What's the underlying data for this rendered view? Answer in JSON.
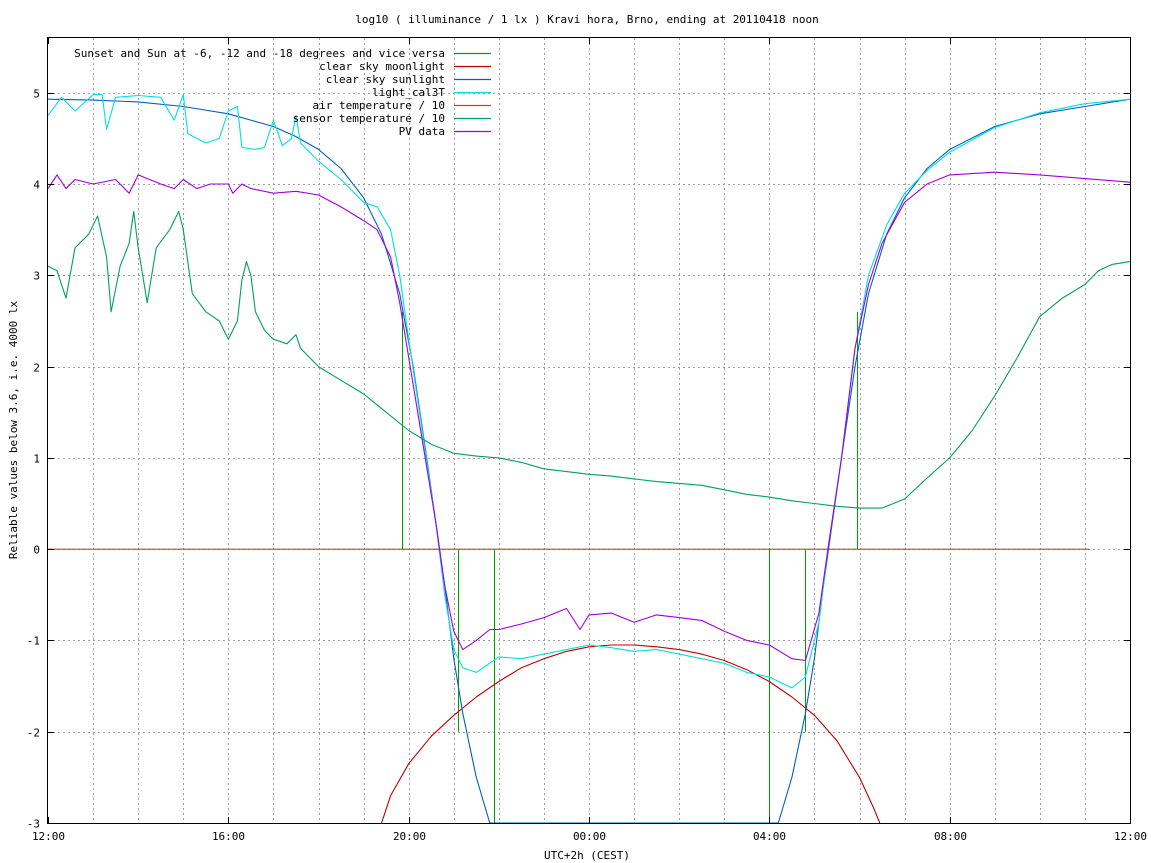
{
  "chart_data": {
    "type": "line",
    "title": "log10 ( illuminance / 1 lx ) Kravi hora, Brno, ending at 20110418 noon",
    "xlabel": "UTC+2h (CEST)",
    "ylabel": "Reliable values below 3.6, i.e. 4000 lx",
    "xlim": [
      0,
      24
    ],
    "ylim": [
      -3,
      5.6
    ],
    "grid": true,
    "legend_position": "top-left",
    "x_ticks": [
      {
        "value": 0,
        "label": "12:00"
      },
      {
        "value": 4,
        "label": "16:00"
      },
      {
        "value": 8,
        "label": "20:00"
      },
      {
        "value": 12,
        "label": "00:00"
      },
      {
        "value": 16,
        "label": "04:00"
      },
      {
        "value": 20,
        "label": "08:00"
      },
      {
        "value": 24,
        "label": "12:00"
      }
    ],
    "x_minor_grid_step": 1,
    "y_ticks": [
      {
        "value": 5,
        "label": "5"
      },
      {
        "value": 4,
        "label": "4"
      },
      {
        "value": 3,
        "label": "3"
      },
      {
        "value": 2,
        "label": "2"
      },
      {
        "value": 1,
        "label": "1"
      },
      {
        "value": 0,
        "label": "0"
      },
      {
        "value": -1,
        "label": "-1"
      },
      {
        "value": -2,
        "label": "-2"
      },
      {
        "value": -3,
        "label": "-3"
      }
    ],
    "series": [
      {
        "name": "Sunset and Sun at -6, -12 and -18 degrees and vice versa",
        "color": "#00a000",
        "style": "impulses",
        "impulses": [
          {
            "x": 7.85,
            "y": 2.6
          },
          {
            "x": 9.1,
            "y": -2.0
          },
          {
            "x": 9.9,
            "y": -3.0
          },
          {
            "x": 16.0,
            "y": -3.0
          },
          {
            "x": 16.8,
            "y": -2.0
          },
          {
            "x": 17.95,
            "y": 2.6
          }
        ]
      },
      {
        "name": "clear sky moonlight",
        "color": "#c00000",
        "points": [
          [
            7.4,
            -3.0
          ],
          [
            7.6,
            -2.7
          ],
          [
            8.0,
            -2.35
          ],
          [
            8.5,
            -2.05
          ],
          [
            9.0,
            -1.82
          ],
          [
            9.5,
            -1.62
          ],
          [
            10.0,
            -1.45
          ],
          [
            10.5,
            -1.3
          ],
          [
            11.0,
            -1.2
          ],
          [
            11.5,
            -1.12
          ],
          [
            12.0,
            -1.07
          ],
          [
            12.5,
            -1.05
          ],
          [
            13.0,
            -1.05
          ],
          [
            13.5,
            -1.07
          ],
          [
            14.0,
            -1.1
          ],
          [
            14.5,
            -1.15
          ],
          [
            15.0,
            -1.22
          ],
          [
            15.5,
            -1.32
          ],
          [
            16.0,
            -1.45
          ],
          [
            16.5,
            -1.62
          ],
          [
            17.0,
            -1.82
          ],
          [
            17.5,
            -2.1
          ],
          [
            18.0,
            -2.5
          ],
          [
            18.3,
            -2.82
          ],
          [
            18.45,
            -3.0
          ]
        ]
      },
      {
        "name": "clear sky sunlight",
        "color": "#0060c0",
        "points": [
          [
            0,
            4.93
          ],
          [
            1,
            4.92
          ],
          [
            2,
            4.9
          ],
          [
            3,
            4.85
          ],
          [
            4,
            4.77
          ],
          [
            5,
            4.63
          ],
          [
            5.5,
            4.52
          ],
          [
            6,
            4.38
          ],
          [
            6.5,
            4.17
          ],
          [
            7,
            3.85
          ],
          [
            7.4,
            3.45
          ],
          [
            7.8,
            2.8
          ],
          [
            8.1,
            2.0
          ],
          [
            8.4,
            1.0
          ],
          [
            8.6,
            0.3
          ],
          [
            8.8,
            -0.4
          ],
          [
            9.0,
            -1.2
          ],
          [
            9.2,
            -1.8
          ],
          [
            9.5,
            -2.5
          ],
          [
            9.8,
            -3.0
          ],
          [
            16.2,
            -3.0
          ],
          [
            16.5,
            -2.5
          ],
          [
            16.8,
            -1.8
          ],
          [
            17.0,
            -1.2
          ],
          [
            17.2,
            -0.4
          ],
          [
            17.4,
            0.3
          ],
          [
            17.6,
            1.0
          ],
          [
            17.9,
            2.0
          ],
          [
            18.2,
            2.8
          ],
          [
            18.6,
            3.45
          ],
          [
            19.0,
            3.85
          ],
          [
            19.5,
            4.17
          ],
          [
            20.0,
            4.38
          ],
          [
            21.0,
            4.63
          ],
          [
            22.0,
            4.77
          ],
          [
            23.0,
            4.85
          ],
          [
            24.0,
            4.93
          ]
        ]
      },
      {
        "name": "light_cal3T",
        "color": "#00e0e0",
        "points": [
          [
            0,
            4.75
          ],
          [
            0.3,
            4.95
          ],
          [
            0.6,
            4.8
          ],
          [
            1.0,
            4.98
          ],
          [
            1.2,
            4.98
          ],
          [
            1.3,
            4.6
          ],
          [
            1.5,
            4.95
          ],
          [
            2.0,
            4.97
          ],
          [
            2.5,
            4.95
          ],
          [
            2.8,
            4.7
          ],
          [
            3.0,
            4.98
          ],
          [
            3.1,
            4.55
          ],
          [
            3.5,
            4.45
          ],
          [
            3.8,
            4.5
          ],
          [
            4.0,
            4.8
          ],
          [
            4.2,
            4.85
          ],
          [
            4.3,
            4.4
          ],
          [
            4.6,
            4.38
          ],
          [
            4.8,
            4.4
          ],
          [
            5.0,
            4.7
          ],
          [
            5.2,
            4.42
          ],
          [
            5.4,
            4.5
          ],
          [
            5.5,
            4.75
          ],
          [
            5.6,
            4.45
          ],
          [
            6.0,
            4.25
          ],
          [
            6.5,
            4.05
          ],
          [
            7.0,
            3.8
          ],
          [
            7.3,
            3.75
          ],
          [
            7.6,
            3.5
          ],
          [
            7.8,
            3.0
          ],
          [
            8.0,
            2.3
          ],
          [
            8.3,
            1.3
          ],
          [
            8.6,
            0.3
          ],
          [
            8.8,
            -0.5
          ],
          [
            9.0,
            -1.1
          ],
          [
            9.2,
            -1.3
          ],
          [
            9.5,
            -1.35
          ],
          [
            10.0,
            -1.18
          ],
          [
            10.5,
            -1.2
          ],
          [
            11.0,
            -1.15
          ],
          [
            11.5,
            -1.1
          ],
          [
            12.0,
            -1.05
          ],
          [
            12.5,
            -1.08
          ],
          [
            13.0,
            -1.12
          ],
          [
            13.5,
            -1.1
          ],
          [
            14.0,
            -1.15
          ],
          [
            14.5,
            -1.2
          ],
          [
            15.0,
            -1.25
          ],
          [
            15.5,
            -1.35
          ],
          [
            16.0,
            -1.4
          ],
          [
            16.5,
            -1.52
          ],
          [
            16.8,
            -1.4
          ],
          [
            17.1,
            -0.8
          ],
          [
            17.3,
            0.0
          ],
          [
            17.6,
            1.0
          ],
          [
            17.9,
            2.2
          ],
          [
            18.2,
            3.0
          ],
          [
            18.6,
            3.55
          ],
          [
            19.0,
            3.9
          ],
          [
            19.5,
            4.15
          ],
          [
            20.0,
            4.35
          ],
          [
            21.0,
            4.62
          ],
          [
            22.0,
            4.78
          ],
          [
            23.0,
            4.88
          ],
          [
            24.0,
            4.93
          ]
        ]
      },
      {
        "name": "air temperature / 10",
        "color": "#c05000",
        "points": [
          [
            0,
            0.0
          ],
          [
            23.1,
            0.0
          ]
        ]
      },
      {
        "name": "sensor temperature / 10",
        "color": "#00a060",
        "points": [
          [
            0,
            3.1
          ],
          [
            0.2,
            3.05
          ],
          [
            0.4,
            2.75
          ],
          [
            0.6,
            3.3
          ],
          [
            0.9,
            3.45
          ],
          [
            1.1,
            3.65
          ],
          [
            1.3,
            3.2
          ],
          [
            1.4,
            2.6
          ],
          [
            1.6,
            3.1
          ],
          [
            1.8,
            3.35
          ],
          [
            1.9,
            3.7
          ],
          [
            2.0,
            3.3
          ],
          [
            2.2,
            2.7
          ],
          [
            2.4,
            3.3
          ],
          [
            2.7,
            3.5
          ],
          [
            2.9,
            3.7
          ],
          [
            3.0,
            3.5
          ],
          [
            3.2,
            2.8
          ],
          [
            3.5,
            2.6
          ],
          [
            3.8,
            2.5
          ],
          [
            4.0,
            2.3
          ],
          [
            4.2,
            2.5
          ],
          [
            4.3,
            2.95
          ],
          [
            4.4,
            3.15
          ],
          [
            4.5,
            3.0
          ],
          [
            4.6,
            2.6
          ],
          [
            4.8,
            2.4
          ],
          [
            5.0,
            2.3
          ],
          [
            5.3,
            2.25
          ],
          [
            5.5,
            2.35
          ],
          [
            5.6,
            2.2
          ],
          [
            6.0,
            2.0
          ],
          [
            6.5,
            1.85
          ],
          [
            7.0,
            1.7
          ],
          [
            7.5,
            1.5
          ],
          [
            8.0,
            1.3
          ],
          [
            8.5,
            1.15
          ],
          [
            9.0,
            1.05
          ],
          [
            9.5,
            1.02
          ],
          [
            10.0,
            1.0
          ],
          [
            10.5,
            0.95
          ],
          [
            11.0,
            0.88
          ],
          [
            11.5,
            0.85
          ],
          [
            12.0,
            0.82
          ],
          [
            12.5,
            0.8
          ],
          [
            13.0,
            0.77
          ],
          [
            13.5,
            0.74
          ],
          [
            14.0,
            0.72
          ],
          [
            14.5,
            0.7
          ],
          [
            15.0,
            0.65
          ],
          [
            15.5,
            0.6
          ],
          [
            16.0,
            0.57
          ],
          [
            16.5,
            0.53
          ],
          [
            17.0,
            0.5
          ],
          [
            17.5,
            0.47
          ],
          [
            18.0,
            0.45
          ],
          [
            18.5,
            0.45
          ],
          [
            19.0,
            0.55
          ],
          [
            19.5,
            0.78
          ],
          [
            20.0,
            1.0
          ],
          [
            20.5,
            1.3
          ],
          [
            21.0,
            1.68
          ],
          [
            21.5,
            2.1
          ],
          [
            22.0,
            2.55
          ],
          [
            22.5,
            2.75
          ],
          [
            23.0,
            2.9
          ],
          [
            23.3,
            3.05
          ],
          [
            23.6,
            3.12
          ],
          [
            24.0,
            3.15
          ]
        ]
      },
      {
        "name": "PV data",
        "color": "#a000e0",
        "points": [
          [
            0,
            3.95
          ],
          [
            0.2,
            4.1
          ],
          [
            0.4,
            3.95
          ],
          [
            0.6,
            4.05
          ],
          [
            1.0,
            4.0
          ],
          [
            1.5,
            4.05
          ],
          [
            1.8,
            3.9
          ],
          [
            2.0,
            4.1
          ],
          [
            2.5,
            4.0
          ],
          [
            2.8,
            3.95
          ],
          [
            3.0,
            4.05
          ],
          [
            3.3,
            3.95
          ],
          [
            3.6,
            4.0
          ],
          [
            4.0,
            4.0
          ],
          [
            4.1,
            3.9
          ],
          [
            4.3,
            4.0
          ],
          [
            4.5,
            3.95
          ],
          [
            5.0,
            3.9
          ],
          [
            5.5,
            3.92
          ],
          [
            6.0,
            3.88
          ],
          [
            6.5,
            3.75
          ],
          [
            7.0,
            3.6
          ],
          [
            7.3,
            3.5
          ],
          [
            7.6,
            3.2
          ],
          [
            7.8,
            2.7
          ],
          [
            8.0,
            2.1
          ],
          [
            8.3,
            1.2
          ],
          [
            8.6,
            0.3
          ],
          [
            8.8,
            -0.4
          ],
          [
            9.0,
            -0.9
          ],
          [
            9.2,
            -1.1
          ],
          [
            9.5,
            -1.0
          ],
          [
            9.8,
            -0.88
          ],
          [
            10.0,
            -0.88
          ],
          [
            10.5,
            -0.82
          ],
          [
            11.0,
            -0.75
          ],
          [
            11.5,
            -0.65
          ],
          [
            11.8,
            -0.88
          ],
          [
            12.0,
            -0.72
          ],
          [
            12.5,
            -0.7
          ],
          [
            13.0,
            -0.8
          ],
          [
            13.5,
            -0.72
          ],
          [
            14.0,
            -0.75
          ],
          [
            14.5,
            -0.78
          ],
          [
            15.0,
            -0.9
          ],
          [
            15.5,
            -1.0
          ],
          [
            16.0,
            -1.05
          ],
          [
            16.5,
            -1.2
          ],
          [
            16.8,
            -1.22
          ],
          [
            17.1,
            -0.7
          ],
          [
            17.3,
            0.0
          ],
          [
            17.6,
            1.0
          ],
          [
            17.9,
            2.2
          ],
          [
            18.2,
            2.9
          ],
          [
            18.5,
            3.35
          ],
          [
            19.0,
            3.8
          ],
          [
            19.5,
            4.0
          ],
          [
            20.0,
            4.1
          ],
          [
            21.0,
            4.13
          ],
          [
            22.0,
            4.1
          ],
          [
            23.0,
            4.06
          ],
          [
            24.0,
            4.02
          ]
        ]
      }
    ]
  }
}
